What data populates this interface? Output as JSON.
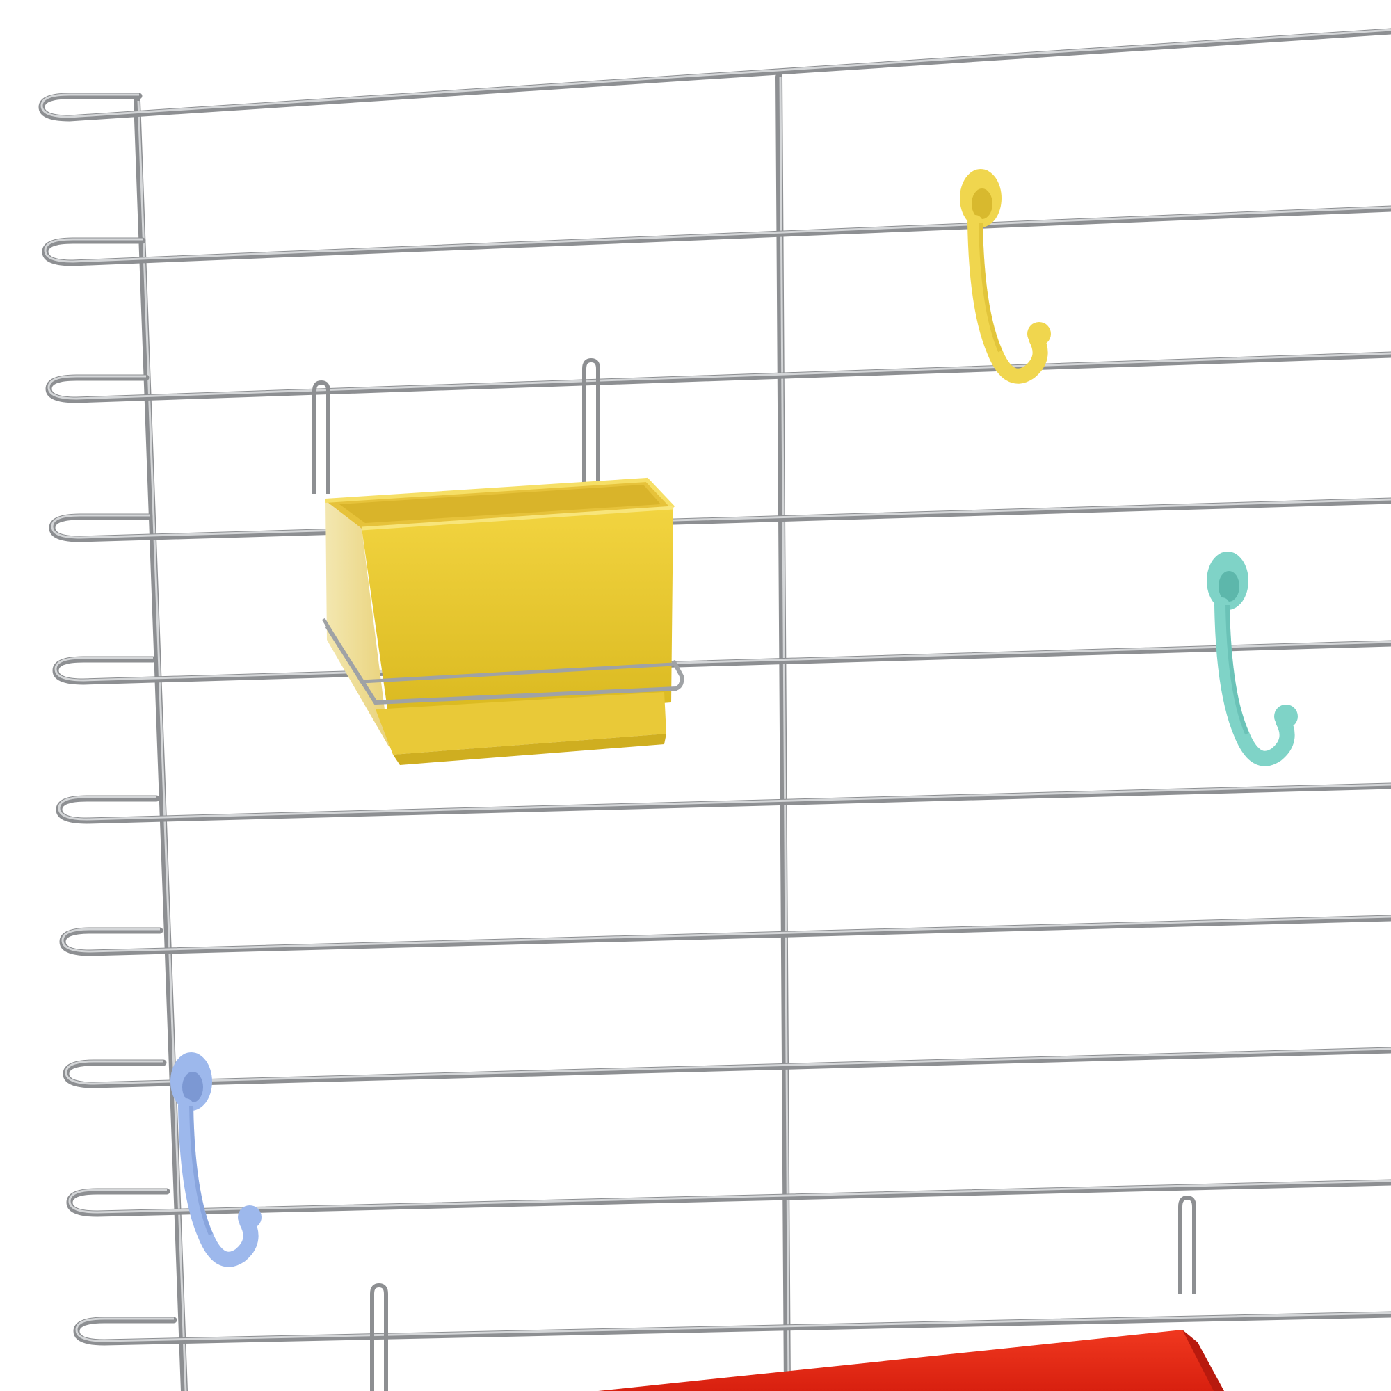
{
  "photo": {
    "subject": "wire-cage-panel",
    "background_color": "#ffffff",
    "wire_color": "#8d8f92",
    "wire_highlight": "#d4d6d8",
    "accessories": [
      {
        "kind": "hook",
        "icon": "s-hook-icon",
        "color": "#f0d64e",
        "shade": "#d8b92e"
      },
      {
        "kind": "hook",
        "icon": "s-hook-icon",
        "color": "#7fd3c7",
        "shade": "#5db7ab"
      },
      {
        "kind": "hook",
        "icon": "s-hook-icon",
        "color": "#9db8ec",
        "shade": "#7c98d3"
      },
      {
        "kind": "cup",
        "icon": "feeder-cup-icon",
        "color": "#e8c52e",
        "shade": "#c9a81a"
      },
      {
        "kind": "dish",
        "icon": "feeder-dish-icon",
        "color": "#e8291c",
        "shade": "#c01a10"
      }
    ]
  }
}
